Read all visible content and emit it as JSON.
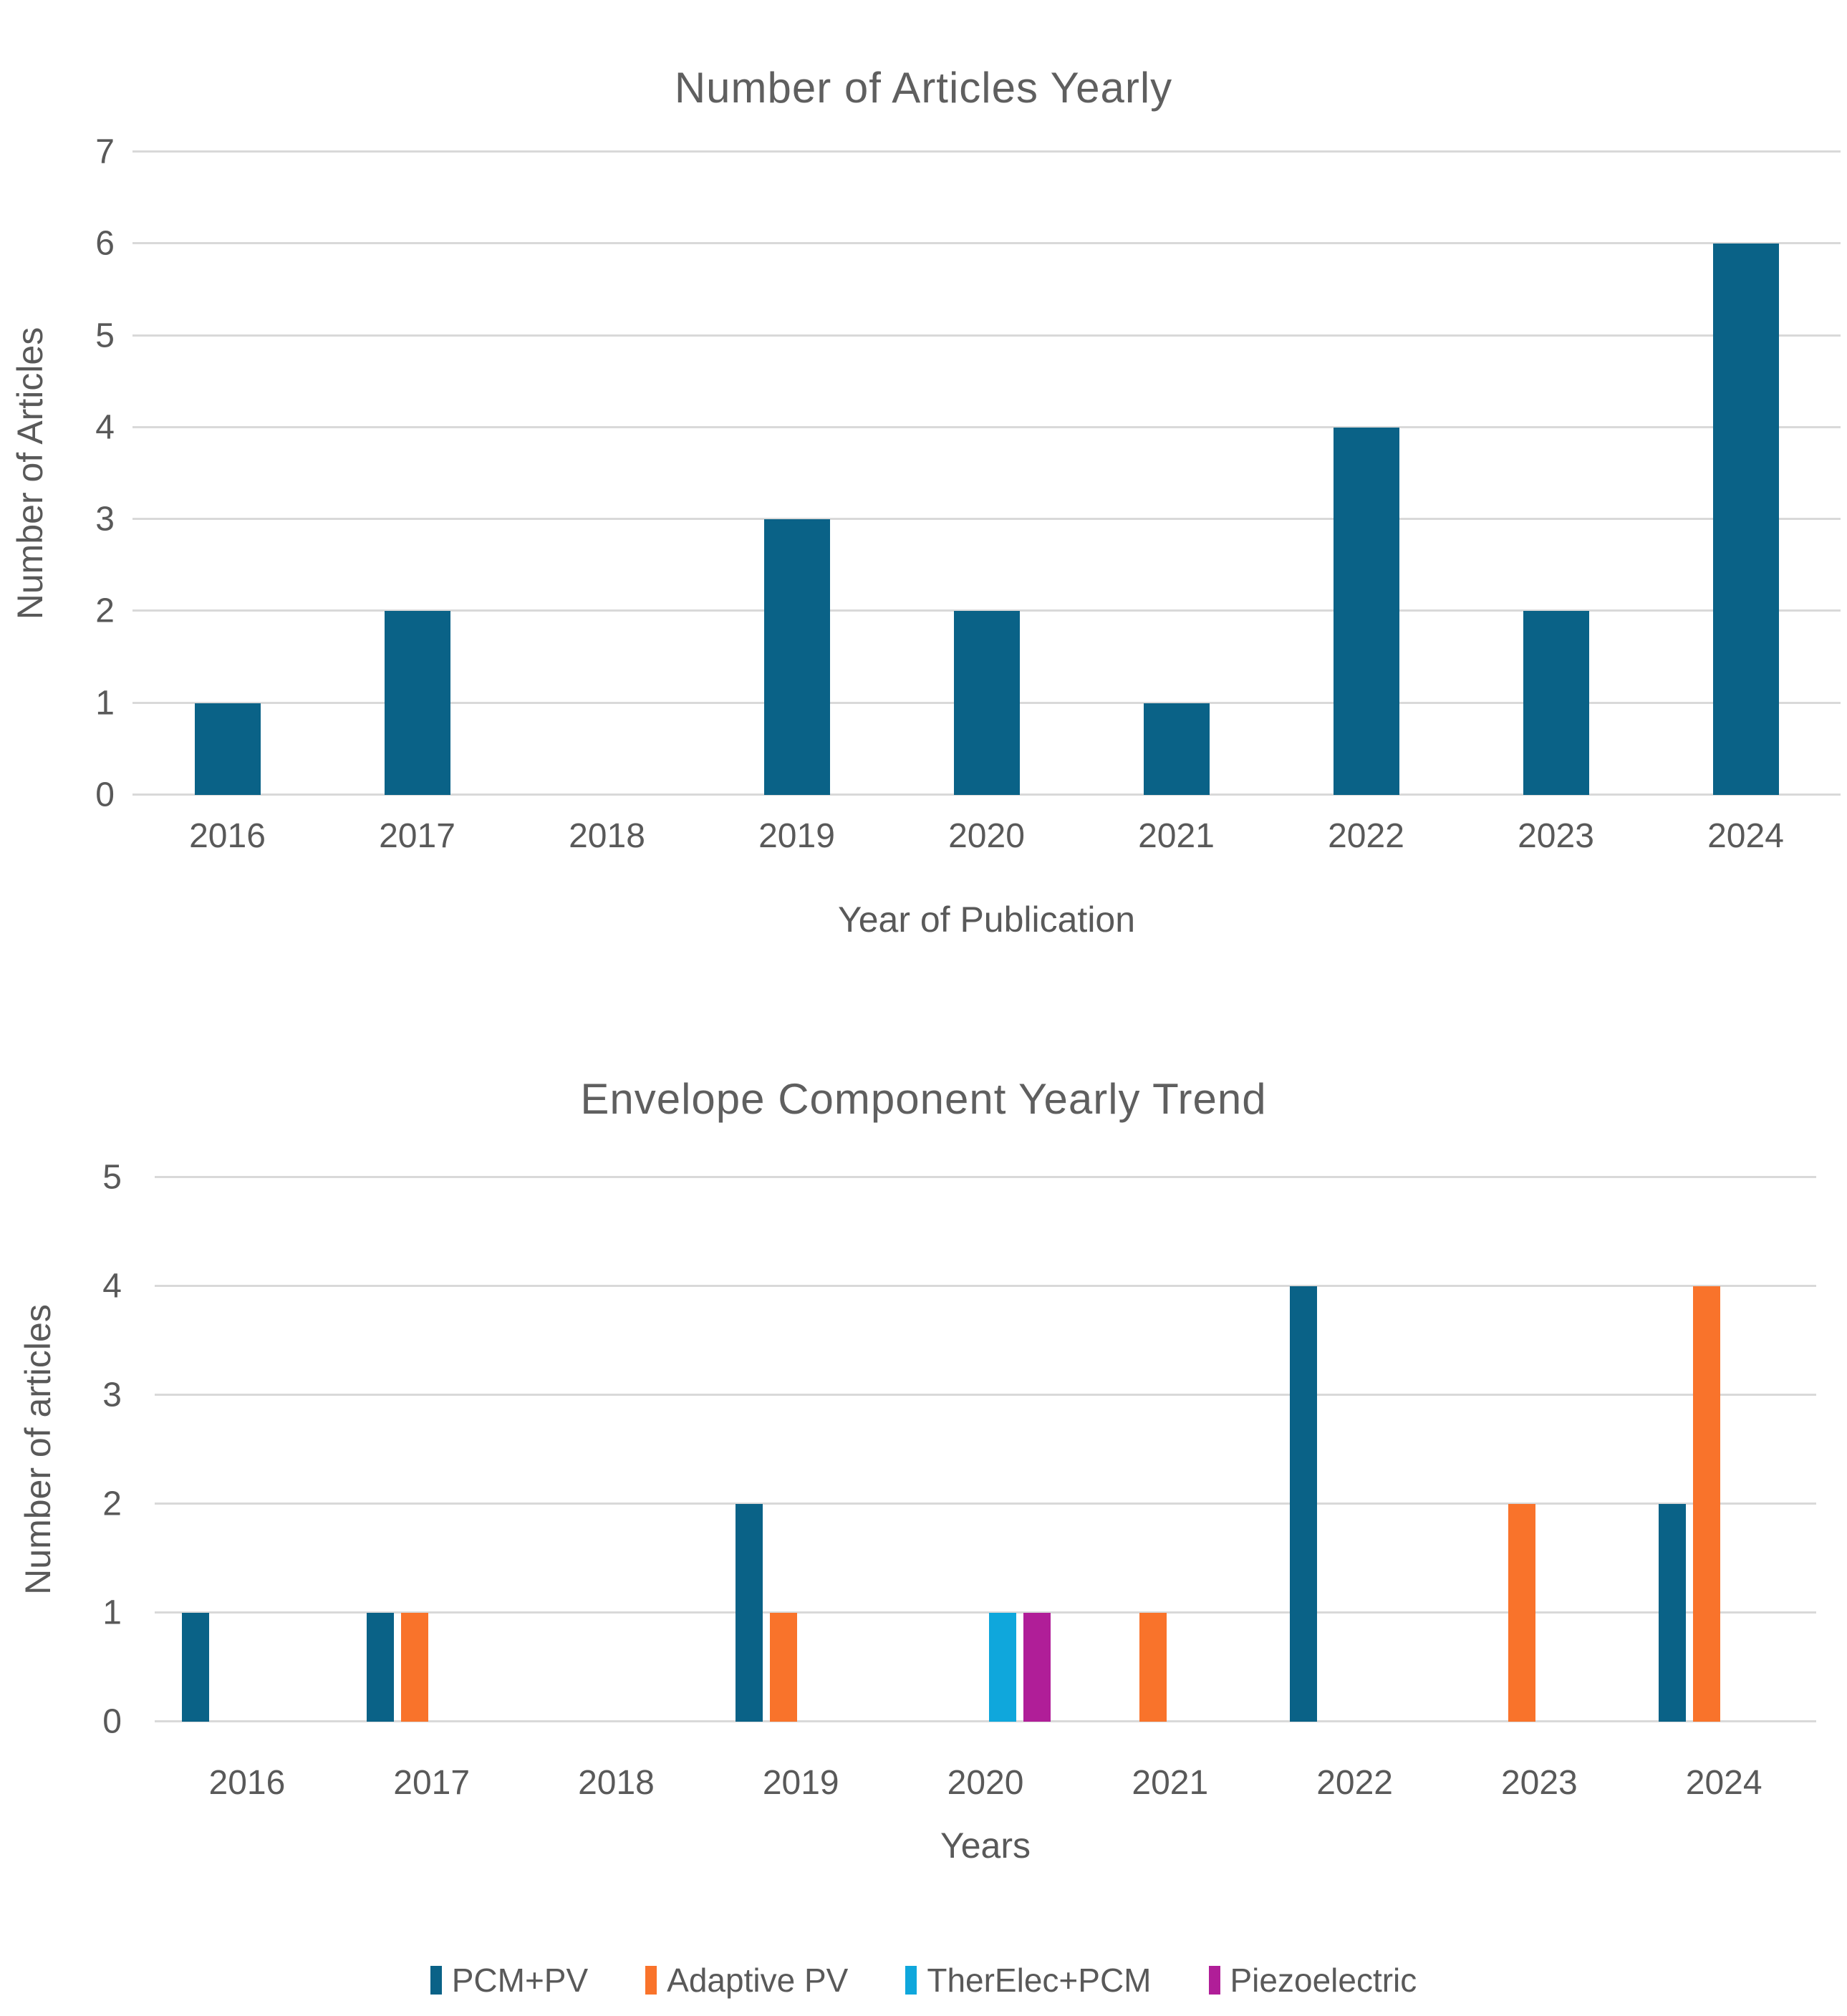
{
  "colors": {
    "teal": "#0A6287",
    "orange": "#F9732B",
    "cyan": "#0FA7DC",
    "magenta": "#B01E98",
    "gridline": "#D9D9D9",
    "text": "#595959"
  },
  "chart_data": [
    {
      "type": "bar",
      "title": "Number of Articles Yearly",
      "xlabel": "Year of Publication",
      "ylabel": "Number of Articles",
      "categories": [
        "2016",
        "2017",
        "2018",
        "2019",
        "2020",
        "2021",
        "2022",
        "2023",
        "2024"
      ],
      "values": [
        1,
        2,
        0,
        3,
        2,
        1,
        4,
        2,
        6
      ],
      "ylim": [
        0,
        7
      ],
      "yticks": [
        0,
        1,
        2,
        3,
        4,
        5,
        6,
        7
      ],
      "grid": true,
      "legend": false,
      "bar_color": "#0A6287"
    },
    {
      "type": "bar",
      "title": "Envelope Component Yearly Trend",
      "xlabel": "Years",
      "ylabel": "Number of articles",
      "categories": [
        "2016",
        "2017",
        "2018",
        "2019",
        "2020",
        "2021",
        "2022",
        "2023",
        "2024"
      ],
      "series": [
        {
          "name": "PCM+PV",
          "color": "#0A6287",
          "values": [
            1,
            1,
            0,
            2,
            0,
            0,
            4,
            0,
            2
          ]
        },
        {
          "name": "Adaptive PV",
          "color": "#F9732B",
          "values": [
            0,
            1,
            0,
            1,
            0,
            1,
            0,
            2,
            4
          ]
        },
        {
          "name": "TherElec+PCM",
          "color": "#0FA7DC",
          "values": [
            0,
            0,
            0,
            0,
            1,
            0,
            0,
            0,
            0
          ]
        },
        {
          "name": "Piezoelectric",
          "color": "#B01E98",
          "values": [
            0,
            0,
            0,
            0,
            1,
            0,
            0,
            0,
            0
          ]
        }
      ],
      "ylim": [
        0,
        5
      ],
      "yticks": [
        0,
        1,
        2,
        3,
        4,
        5
      ],
      "grid": true,
      "legend_position": "bottom"
    }
  ]
}
